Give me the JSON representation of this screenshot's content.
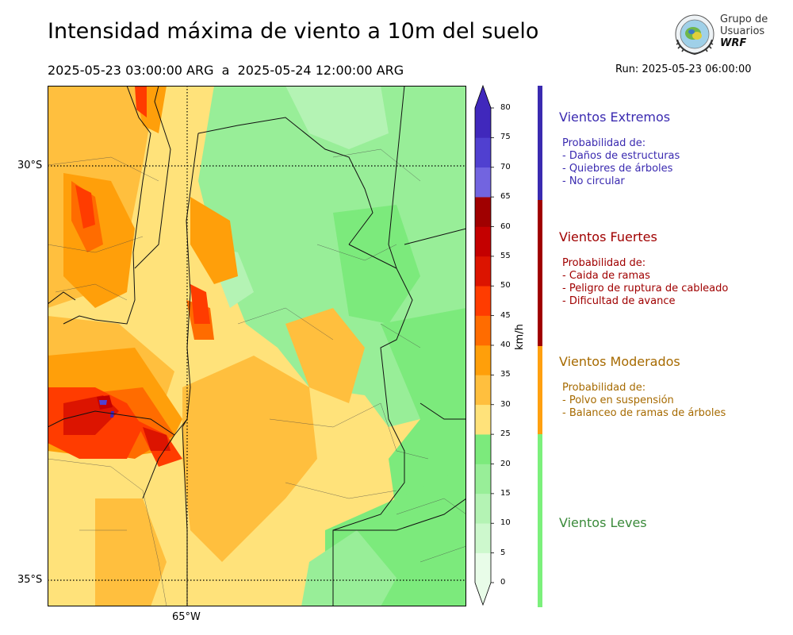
{
  "header": {
    "title": "Intensidad máxima de viento a 10m del suelo",
    "subtitle": "2025-05-23 03:00:00 ARG  a  2025-05-24 12:00:00 ARG",
    "run": "Run: 2025-05-23 06:00:00"
  },
  "logo": {
    "line1": "Grupo de",
    "line2": "Usuarios",
    "line3": "WRF"
  },
  "map": {
    "lat_labels": [
      "30°S",
      "35°S"
    ],
    "lon_labels": [
      "65°W"
    ],
    "gridline_style": "dotted black"
  },
  "colorbar": {
    "unit": "km/h",
    "ticks": [
      "0",
      "5",
      "10",
      "15",
      "20",
      "25",
      "30",
      "35",
      "40",
      "45",
      "50",
      "55",
      "60",
      "65",
      "70",
      "75",
      "80"
    ],
    "colors": [
      "#e8fce8",
      "#cdf8cd",
      "#b4f3b4",
      "#98ee98",
      "#7cea7c",
      "#ffe27a",
      "#ffbf3e",
      "#ff9f0a",
      "#ff6c00",
      "#ff3c00",
      "#dc1400",
      "#c40000",
      "#a00000",
      "#7264e0",
      "#5040d0",
      "#4028bc"
    ],
    "extend": "both"
  },
  "categories": [
    {
      "title": "Vientos Extremos",
      "color": "#3a2ab0",
      "lines": [
        "Probabilidad de:",
        "- Daños de estructuras",
        "- Quiebres de árboles",
        "- No circular"
      ]
    },
    {
      "title": "Vientos Fuertes",
      "color": "#a00000",
      "lines": [
        "Probabilidad de:",
        "- Caida de ramas",
        "- Peligro de ruptura de cableado",
        "- Dificultad de avance"
      ]
    },
    {
      "title": "Vientos Moderados",
      "color": "#a66a00",
      "lines": [
        "Probabilidad de:",
        "- Polvo en suspensión",
        "- Balanceo de ramas de árboles"
      ]
    },
    {
      "title": "Vientos Leves",
      "color": "#3a8a3a",
      "lines": []
    }
  ],
  "category_bar": [
    "#3a2ab0",
    "#a00000",
    "#ffa010",
    "#7cf07c"
  ]
}
